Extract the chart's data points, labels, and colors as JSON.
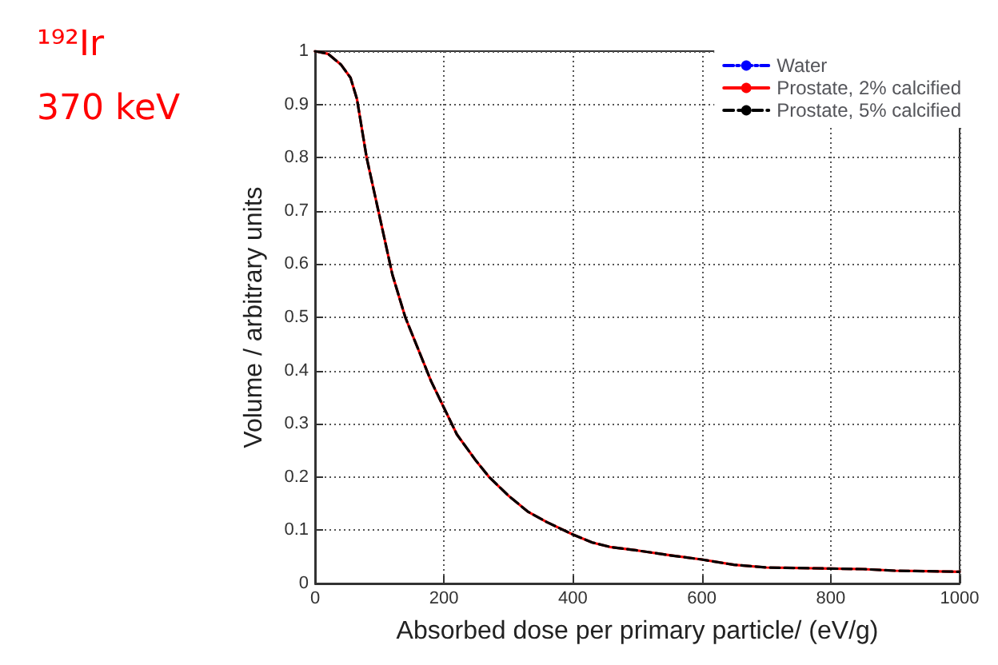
{
  "chart_data": {
    "type": "line",
    "title": "¹⁹²Ir",
    "subtitle": "370 keV",
    "xlabel": "Absorbed dose per primary particle/ (eV/g)",
    "ylabel": "Volume / arbitrary units",
    "x": [
      0,
      20,
      40,
      55,
      65,
      80,
      100,
      120,
      140,
      160,
      180,
      200,
      220,
      250,
      270,
      300,
      330,
      360,
      400,
      430,
      460,
      500,
      550,
      600,
      650,
      700,
      750,
      800,
      850,
      900,
      950,
      1000
    ],
    "series": [
      {
        "name": "Water",
        "color": "#0000ff",
        "line_style": "dashdot",
        "values": [
          null,
          null,
          null,
          null,
          null,
          null,
          null,
          null,
          null,
          null,
          null,
          null,
          null,
          null,
          null,
          null,
          null,
          null,
          null,
          null,
          null,
          null,
          null,
          null,
          null,
          null,
          null,
          null,
          null,
          null,
          null,
          null
        ]
      },
      {
        "name": "Prostate, 2% calcified",
        "color": "#ff0000",
        "line_style": "solid",
        "values": [
          1.0,
          0.995,
          0.975,
          0.95,
          0.91,
          0.8,
          0.69,
          0.58,
          0.5,
          0.44,
          0.38,
          0.33,
          0.28,
          0.23,
          0.2,
          0.165,
          0.135,
          0.115,
          0.092,
          0.077,
          0.068,
          0.062,
          0.053,
          0.045,
          0.035,
          0.03,
          0.029,
          0.028,
          0.027,
          0.024,
          0.023,
          0.022
        ]
      },
      {
        "name": "Prostate, 5% calcified",
        "color": "#000000",
        "line_style": "dashed",
        "values": [
          1.0,
          0.995,
          0.975,
          0.95,
          0.91,
          0.8,
          0.69,
          0.58,
          0.5,
          0.44,
          0.38,
          0.33,
          0.28,
          0.23,
          0.2,
          0.165,
          0.135,
          0.115,
          0.092,
          0.077,
          0.068,
          0.062,
          0.053,
          0.045,
          0.035,
          0.03,
          0.029,
          0.028,
          0.027,
          0.024,
          0.023,
          0.022
        ]
      }
    ],
    "xlim": [
      0,
      1000
    ],
    "xticks": [
      0,
      200,
      400,
      600,
      800,
      1000
    ],
    "ylim": [
      0,
      1
    ],
    "yticks": [
      0,
      0.1,
      0.2,
      0.3,
      0.4,
      0.5,
      0.6,
      0.7,
      0.8,
      0.9,
      1
    ],
    "grid": true,
    "legend": "top right",
    "marker": "none"
  }
}
